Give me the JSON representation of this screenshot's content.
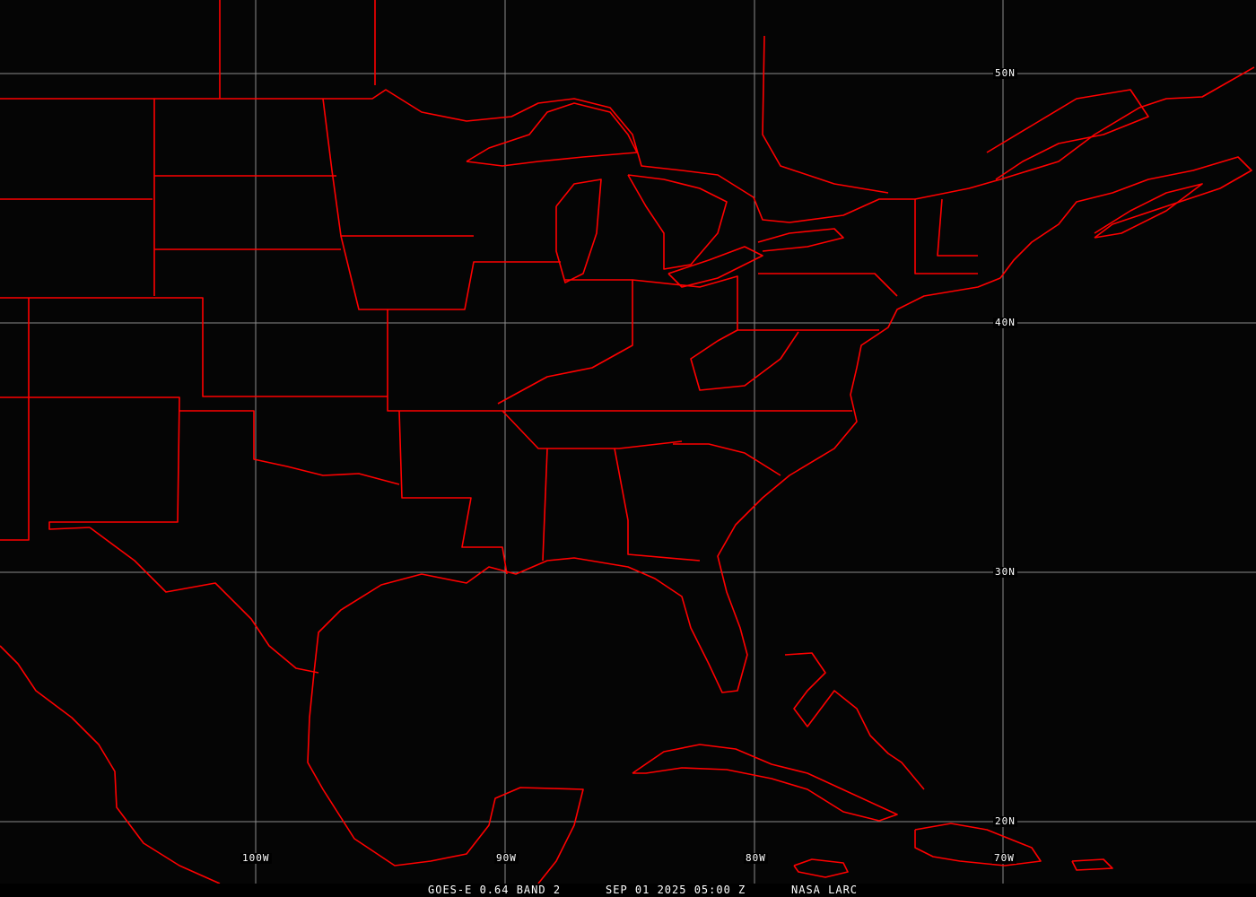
{
  "map": {
    "product": "GOES-E 0.64 BAND 2",
    "datetime": "SEP 01 2025 05:00 Z",
    "source": "NASA LARC",
    "boundary_color": "#ff0000",
    "grid_color": "#8c8c8c",
    "longitude_labels": [
      "100W",
      "90W",
      "80W",
      "70W"
    ],
    "latitude_labels": [
      "50N",
      "40N",
      "30N",
      "20N"
    ]
  }
}
